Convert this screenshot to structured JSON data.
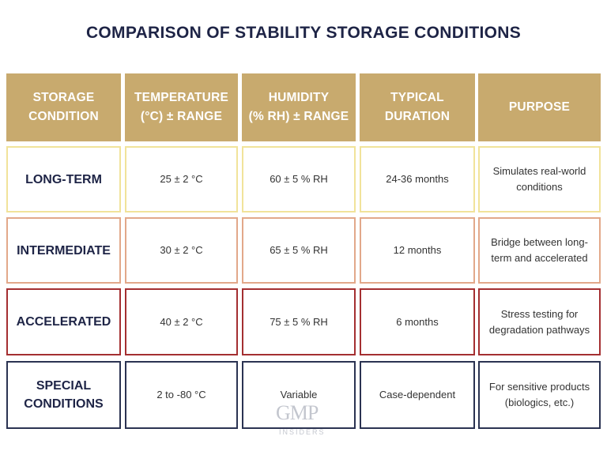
{
  "title": "COMPARISON OF STABILITY STORAGE CONDITIONS",
  "headers": [
    "STORAGE\nCONDITION",
    "TEMPERATURE\n(°C) ± RANGE",
    "HUMIDITY\n(% RH) ± RANGE",
    "TYPICAL\nDURATION",
    "PURPOSE"
  ],
  "rows": [
    {
      "condition": "LONG-TERM",
      "temperature": "25 ± 2 °C",
      "humidity": "60 ± 5 % RH",
      "duration": "24-36 months",
      "purpose": "Simulates real-world\nconditions",
      "border_color": "#f1e39a"
    },
    {
      "condition": "INTERMEDIATE",
      "temperature": "30 ± 2 °C",
      "humidity": "65 ± 5 % RH",
      "duration": "12 months",
      "purpose": "Bridge between long-\nterm and accelerated",
      "border_color": "#e2a88a"
    },
    {
      "condition": "ACCELERATED",
      "temperature": "40 ± 2 °C",
      "humidity": "75 ± 5 % RH",
      "duration": "6 months",
      "purpose": "Stress testing for\ndegradation pathways",
      "border_color": "#a42f31"
    },
    {
      "condition": "SPECIAL\nCONDITIONS",
      "temperature": "2 to -80 °C",
      "humidity": "Variable",
      "duration": "Case-dependent",
      "purpose": "For sensitive products\n(biologics, etc.)",
      "border_color": "#2b3352"
    }
  ],
  "watermark": {
    "logo": "GMP",
    "subtitle": "INSIDERS"
  },
  "colors": {
    "header_bg": "#c8aa6e",
    "title": "#1e2446"
  }
}
